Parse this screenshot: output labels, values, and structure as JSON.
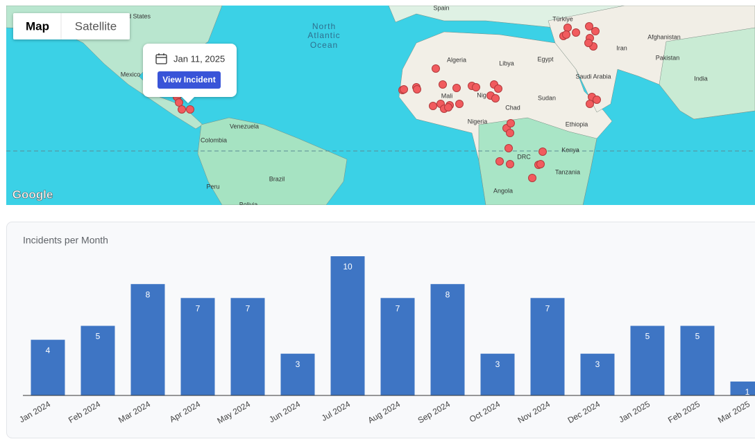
{
  "map": {
    "controls": [
      "Map",
      "Satellite"
    ],
    "labels": [
      "United States",
      "Mexico",
      "North",
      "Atlantic",
      "Ocean",
      "Spain",
      "Türkiye",
      "Iran",
      "Afghanistan",
      "Pakistan",
      "India",
      "Algeria",
      "Libya",
      "Egypt",
      "Saudi Arabia",
      "Mali",
      "Niger",
      "Chad",
      "Sudan",
      "Nigeria",
      "Ethiopia",
      "Venezuela",
      "Colombia",
      "Kenya",
      "DRC",
      "Tanzania",
      "Brazil",
      "Peru",
      "Angola",
      "Bolivia"
    ],
    "tooltip": {
      "date": "Jan 11, 2025",
      "button": "View Incident"
    },
    "logo": "Google"
  },
  "chart_data": {
    "type": "bar",
    "title": "Incidents per Month",
    "categories": [
      "Jan 2024",
      "Feb 2024",
      "Mar 2024",
      "Apr 2024",
      "May 2024",
      "Jun 2024",
      "Jul 2024",
      "Aug 2024",
      "Sep 2024",
      "Oct 2024",
      "Nov 2024",
      "Dec 2024",
      "Jan 2025",
      "Feb 2025",
      "Mar 2025"
    ],
    "values": [
      4,
      5,
      8,
      7,
      7,
      3,
      10,
      7,
      8,
      3,
      7,
      3,
      5,
      5,
      1
    ],
    "color": "#3e75c4",
    "ylim": [
      0,
      10
    ]
  }
}
